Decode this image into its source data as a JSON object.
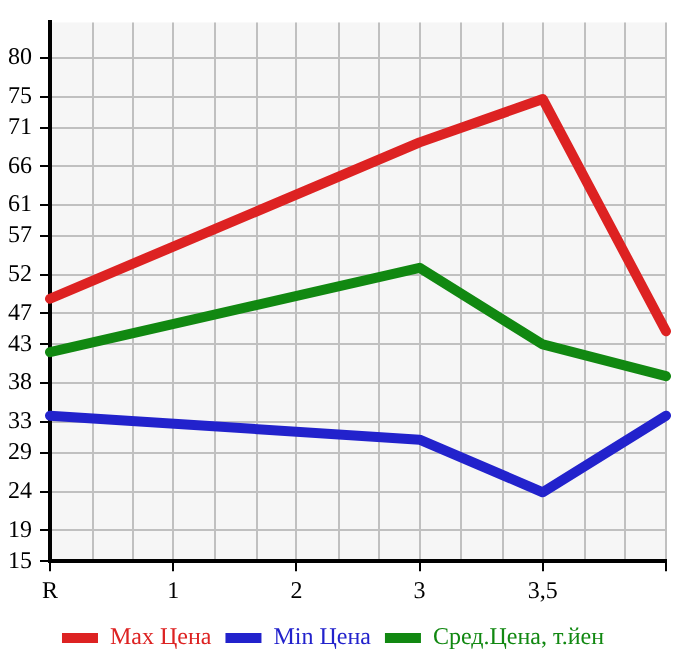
{
  "chart_data": {
    "type": "line",
    "categories": [
      "R",
      "1",
      "2",
      "3",
      "3,5",
      null
    ],
    "series": [
      {
        "name": "Max Цена",
        "color": "#dd2222",
        "values": [
          48.9,
          null,
          null,
          69.1,
          74.7,
          44.7
        ]
      },
      {
        "name": "Min Цена",
        "color": "#2222cc",
        "values": [
          33.8,
          null,
          null,
          30.7,
          23.9,
          33.8
        ]
      },
      {
        "name": "Сред.Цена, т.йен",
        "color": "#118811",
        "values": [
          42,
          null,
          null,
          52.9,
          43,
          38.9
        ]
      }
    ],
    "ylim": [
      15,
      84.6
    ],
    "yticks": [
      15,
      19,
      24,
      29,
      33,
      38,
      43,
      47,
      52,
      57,
      61,
      66,
      71,
      75,
      80
    ],
    "grid": true,
    "legend": "bottom",
    "marker": "none",
    "line_style": "solid"
  }
}
